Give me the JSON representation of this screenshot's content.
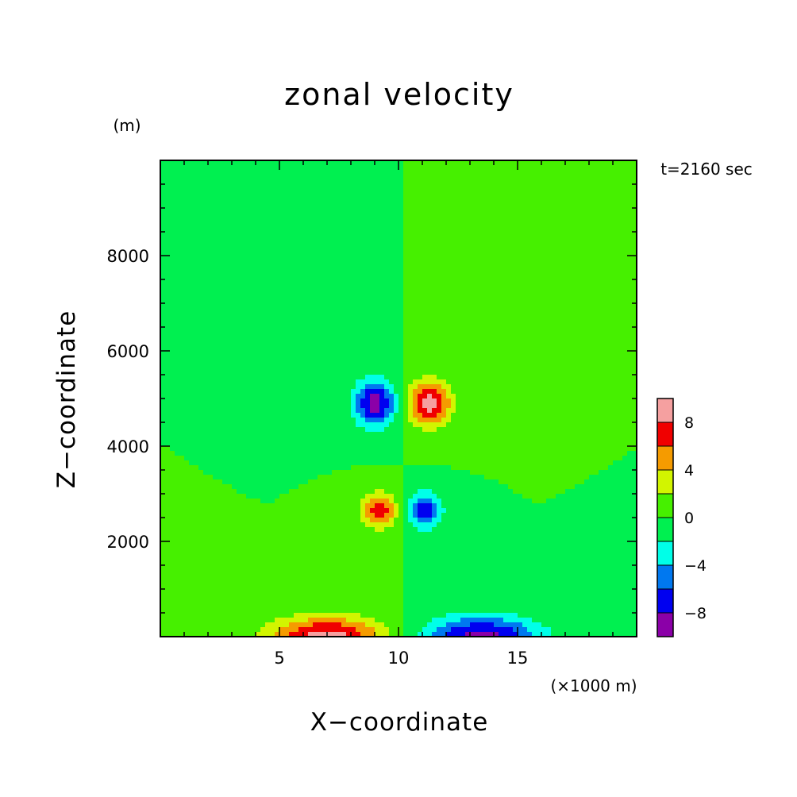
{
  "chart_data": {
    "type": "heatmap",
    "title": "zonal velocity",
    "xlabel": "X−coordinate",
    "ylabel": "Z−coordinate",
    "x_unit_label": "(×1000 m)",
    "y_unit_label": "(m)",
    "time_label": "t=2160 sec",
    "xlim": [
      0,
      20
    ],
    "ylim": [
      0,
      10000
    ],
    "x_ticks": [
      {
        "value": 5,
        "label": "5"
      },
      {
        "value": 10,
        "label": "10"
      },
      {
        "value": 15,
        "label": "15"
      }
    ],
    "y_ticks": [
      {
        "value": 2000,
        "label": "2000"
      },
      {
        "value": 4000,
        "label": "4000"
      },
      {
        "value": 6000,
        "label": "6000"
      },
      {
        "value": 8000,
        "label": "8000"
      }
    ],
    "colorbar": {
      "levels": [
        -10,
        -8,
        -6,
        -4,
        -2,
        0,
        2,
        4,
        6,
        8,
        10
      ],
      "colors": [
        "#8b00a8",
        "#0000f0",
        "#0078f0",
        "#00ffe8",
        "#00f050",
        "#46f000",
        "#d2f500",
        "#f59b00",
        "#f00000",
        "#f5a0a0"
      ],
      "tick_labels": [
        {
          "value": 8,
          "label": "8"
        },
        {
          "value": 4,
          "label": "4"
        },
        {
          "value": 0,
          "label": "0"
        },
        {
          "value": -4,
          "label": "−4"
        },
        {
          "value": -8,
          "label": "−8"
        }
      ]
    },
    "field_features": [
      {
        "x": 9.0,
        "z": 4900,
        "value": -9.0,
        "sx": 0.9,
        "sz": 480
      },
      {
        "x": 11.3,
        "z": 4900,
        "value": 9.0,
        "sx": 0.9,
        "sz": 480
      },
      {
        "x": 9.2,
        "z": 2650,
        "value": 7.5,
        "sx": 0.7,
        "sz": 360
      },
      {
        "x": 11.1,
        "z": 2650,
        "value": -7.5,
        "sx": 0.7,
        "sz": 360
      },
      {
        "x": 7.0,
        "z": 0,
        "value": 9.0,
        "sx": 2.4,
        "sz": 420
      },
      {
        "x": 13.5,
        "z": 0,
        "value": -9.0,
        "sx": 2.4,
        "sz": 420
      }
    ]
  }
}
